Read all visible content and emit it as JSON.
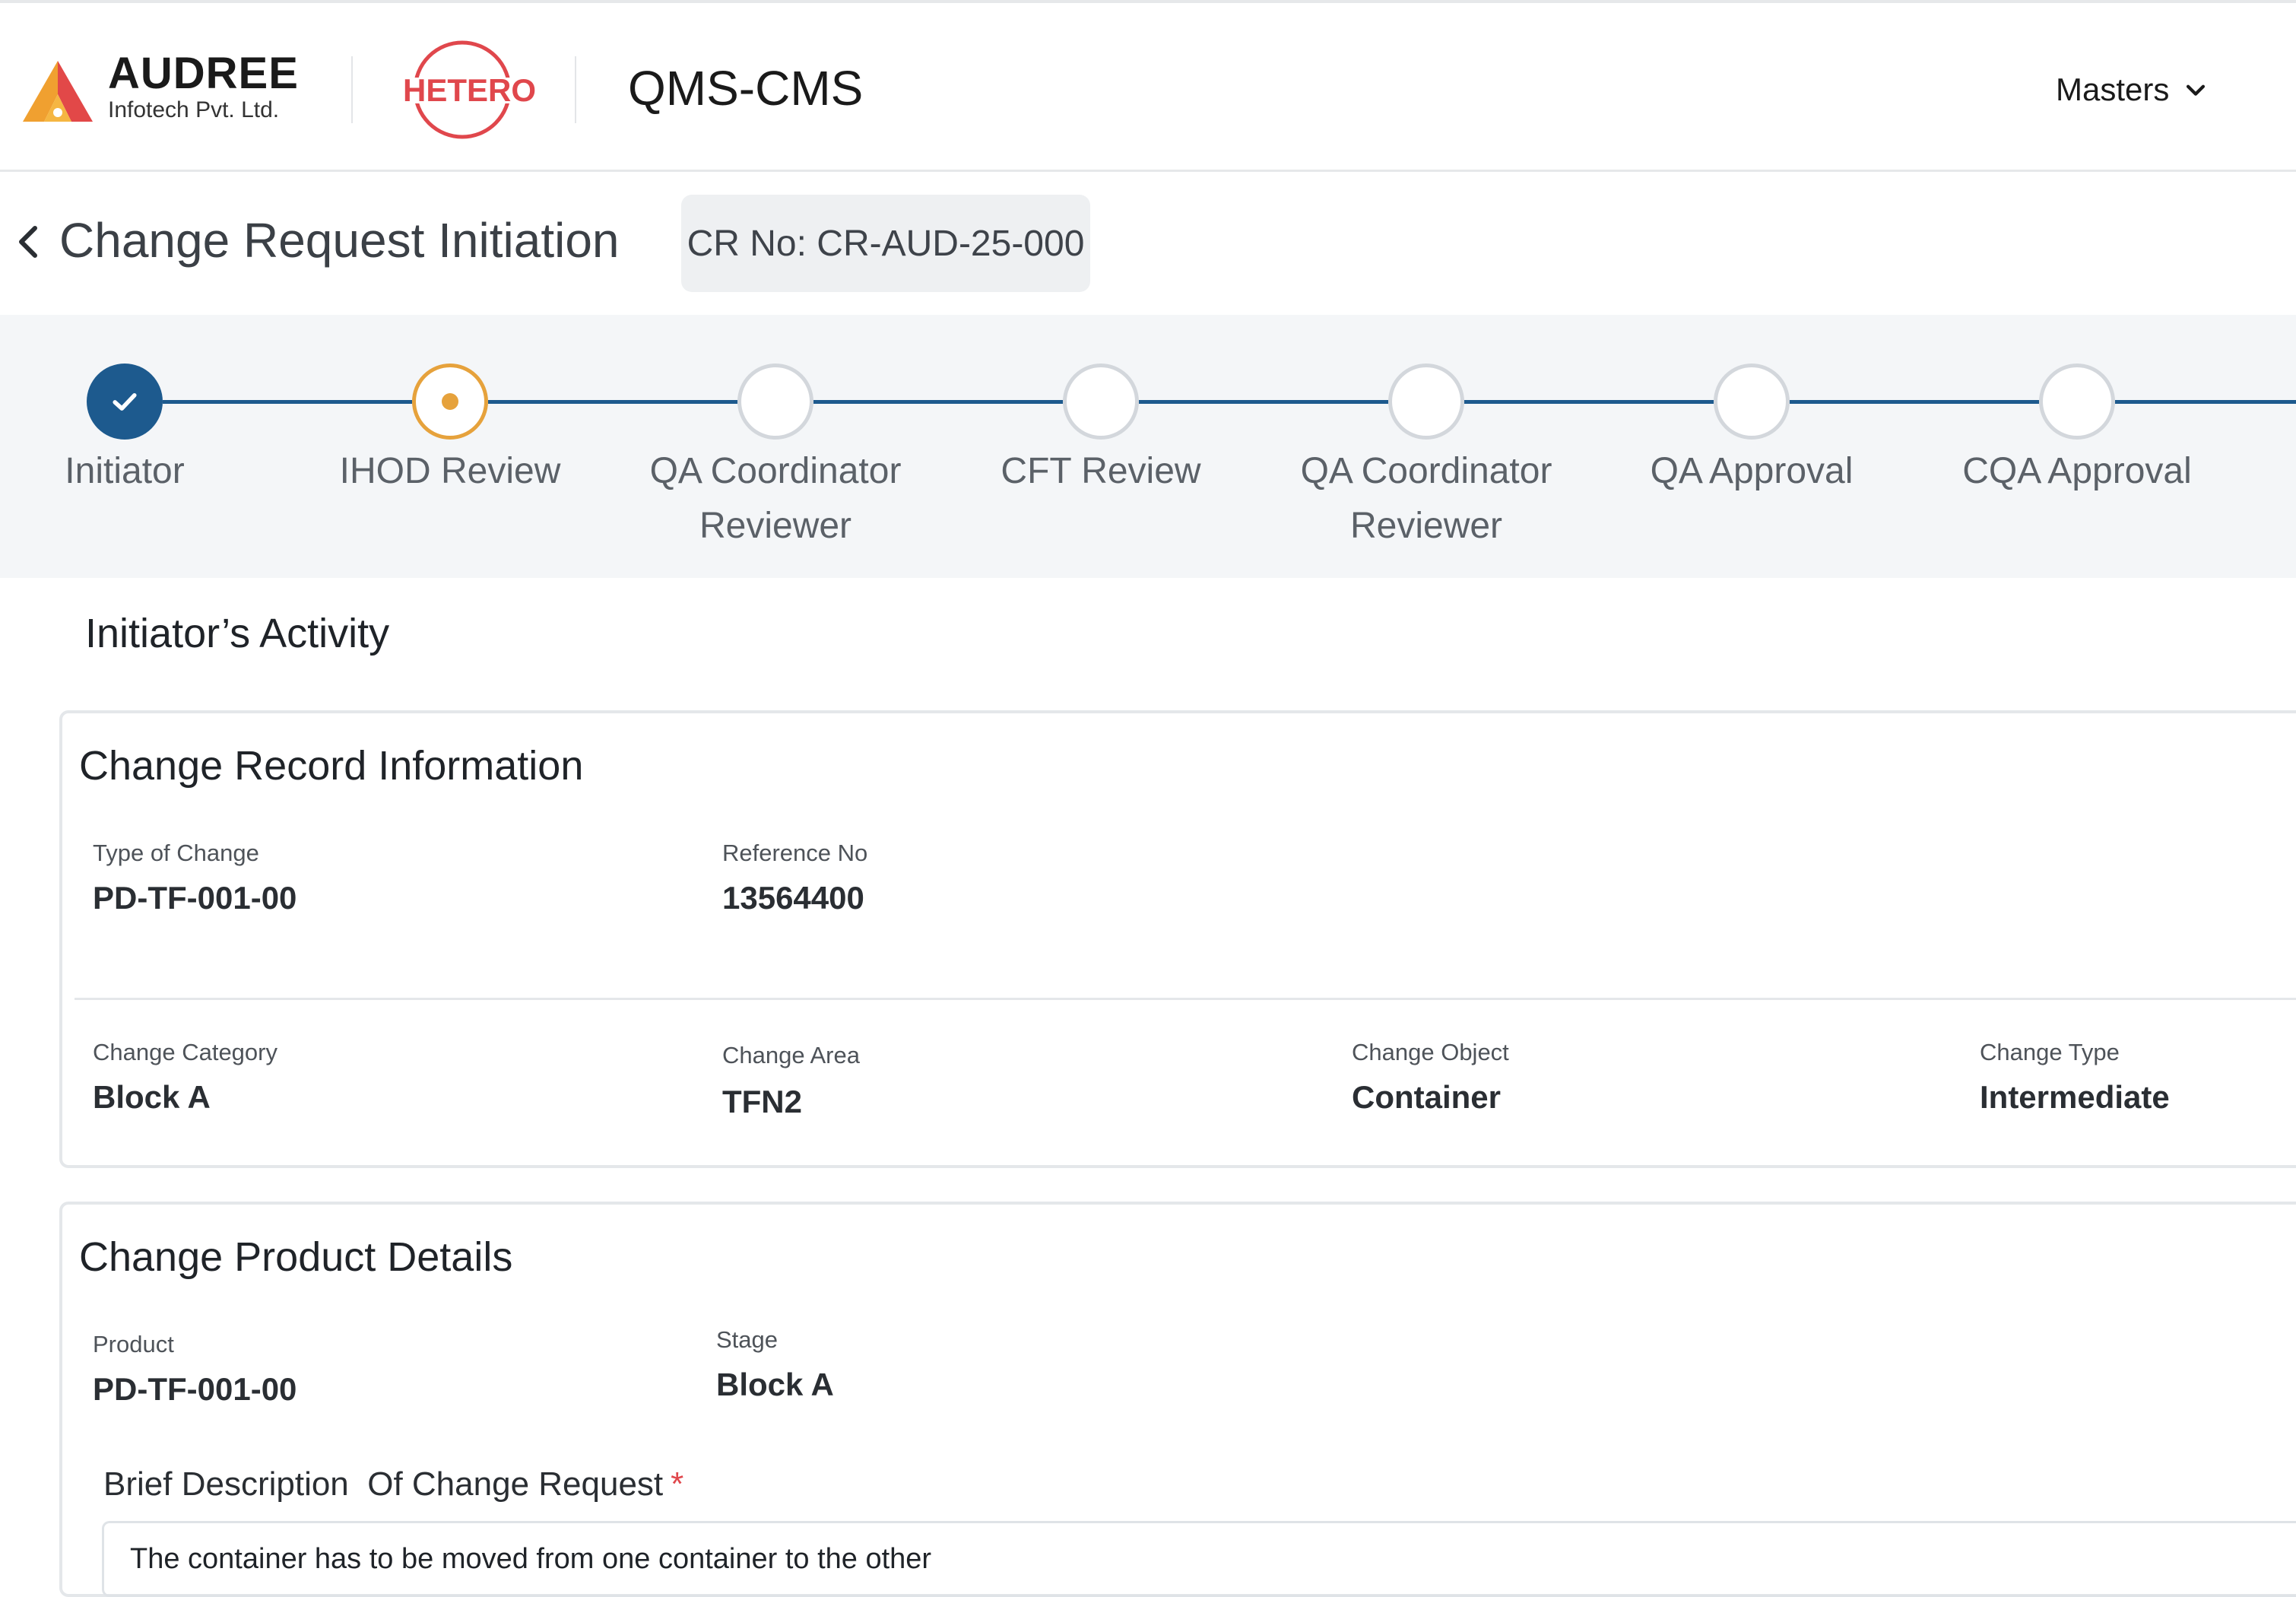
{
  "header": {
    "brand_name": "AUDREE",
    "brand_sub": "Infotech Pvt. Ltd.",
    "partner_logo_text": "HETERO",
    "app_title": "QMS-CMS",
    "menu_label": "Masters",
    "colors": {
      "brand_orange": "#f0a030",
      "brand_red": "#e24848",
      "hetero_red": "#e0474c"
    }
  },
  "titlebar": {
    "title": "Change Request Initiation",
    "cr_number": "CR No: CR-AUD-25-000"
  },
  "stepper": {
    "colors": {
      "line": "#1d5a8e",
      "done": "#1d5a8e",
      "active": "#e6a23c",
      "pending": "#d3d7dc"
    },
    "steps": [
      {
        "label": "Initiator",
        "status": "done"
      },
      {
        "label": "IHOD Review",
        "status": "active"
      },
      {
        "label": "QA Coordinator Reviewer",
        "status": "pending"
      },
      {
        "label": "CFT Review",
        "status": "pending"
      },
      {
        "label": "QA Coordinator Reviewer",
        "status": "pending"
      },
      {
        "label": "QA Approval",
        "status": "pending"
      },
      {
        "label": "CQA Approval",
        "status": "pending"
      }
    ]
  },
  "content": {
    "heading": "Initiator’s Activity",
    "record": {
      "title": "Change Record Information",
      "type_of_change_label": "Type of Change",
      "type_of_change_value": "PD-TF-001-00",
      "reference_no_label": "Reference No",
      "reference_no_value": "13564400",
      "change_category_label": "Change Category",
      "change_category_value": "Block A",
      "change_area_label": "Change Area",
      "change_area_value": "TFN2",
      "change_object_label": "Change Object",
      "change_object_value": "Container",
      "change_type_label": "Change Type",
      "change_type_value": "Intermediate"
    },
    "product": {
      "title": "Change Product Details",
      "product_label": "Product",
      "product_value": "PD-TF-001-00",
      "stage_label": "Stage",
      "stage_value": "Block A",
      "description_label": "Brief Description  Of Change Request",
      "required_mark": "*",
      "description_value": "The container has to be moved from one container to the other"
    }
  }
}
